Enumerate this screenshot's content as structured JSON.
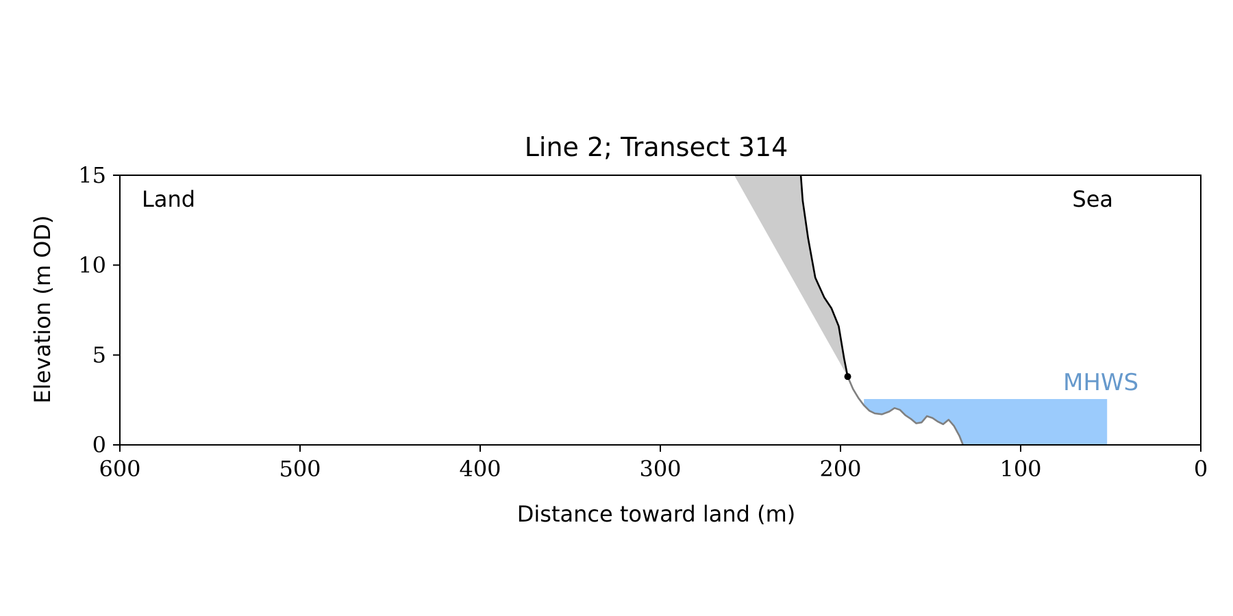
{
  "chart_data": {
    "type": "line",
    "title": "Line 2; Transect 314",
    "xlabel": "Distance toward land (m)",
    "ylabel": "Elevation (m OD)",
    "xlim": [
      600,
      0
    ],
    "ylim": [
      0,
      15
    ],
    "x_reversed": true,
    "xticks": [
      600,
      500,
      400,
      300,
      200,
      100,
      0
    ],
    "yticks": [
      0,
      5,
      10,
      15
    ],
    "grid": false,
    "annotations": {
      "land": "Land",
      "sea": "Sea",
      "mhws": "MHWS"
    },
    "series": [
      {
        "role": "cliff_profile",
        "color": "#000000",
        "x": [
          222,
          221,
          218,
          214,
          209,
          205,
          201,
          198,
          196
        ],
        "y": [
          15,
          13.6,
          11.5,
          9.3,
          8.2,
          7.6,
          6.6,
          4.8,
          3.8
        ]
      },
      {
        "role": "foreshore_profile",
        "color": "#808080",
        "x": [
          196,
          193,
          190,
          187,
          184,
          181,
          177,
          173,
          170,
          167,
          164,
          161,
          158,
          155,
          152,
          149,
          146,
          143,
          140,
          137,
          134,
          132
        ],
        "y": [
          3.8,
          3.1,
          2.6,
          2.2,
          1.9,
          1.75,
          1.7,
          1.85,
          2.05,
          1.95,
          1.65,
          1.45,
          1.2,
          1.25,
          1.6,
          1.5,
          1.3,
          1.15,
          1.4,
          1.05,
          0.5,
          0
        ]
      }
    ],
    "cliff_top_marker": {
      "x": 196,
      "y": 3.8,
      "color": "#000000"
    },
    "shaded_region": {
      "color": "#cccccc",
      "polygon_x": [
        259,
        222,
        221,
        218,
        214,
        209,
        205,
        201,
        198,
        196
      ],
      "polygon_y": [
        15,
        15,
        13.6,
        11.5,
        9.3,
        8.2,
        7.6,
        6.6,
        4.8,
        3.8
      ]
    },
    "mhws": {
      "level": 2.55,
      "x_from": 187,
      "x_to": 52,
      "color": "#9bcbfc",
      "label_color": "#6699cc"
    }
  }
}
